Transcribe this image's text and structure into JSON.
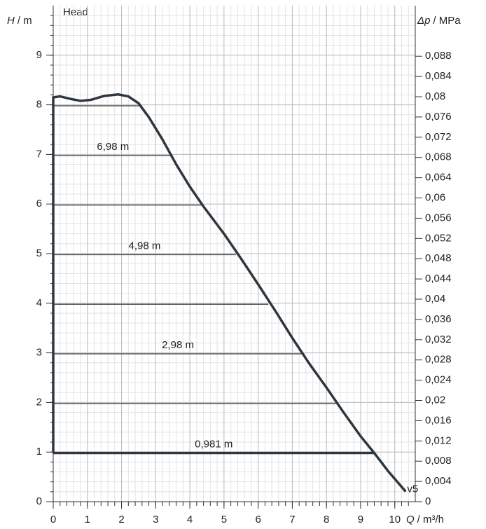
{
  "chart_data": {
    "type": "line",
    "title": "Head",
    "y_label_symbol": "H",
    "y_label_unit": "/ m",
    "y2_label_symbol": "Δp",
    "y2_label_unit": "/ MPa",
    "x_label_symbol": "Q",
    "x_label_unit": "/ m³/h",
    "xlim": [
      0,
      10.6
    ],
    "ylim": [
      0,
      10
    ],
    "y2lim": [
      0,
      0.098
    ],
    "xticks": [
      0,
      1,
      2,
      3,
      4,
      5,
      6,
      7,
      8,
      9,
      10
    ],
    "yticks": [
      0,
      1,
      2,
      3,
      4,
      5,
      6,
      7,
      8,
      9
    ],
    "y2ticks": [
      0,
      {
        "value": 0.004,
        "label": "0,004"
      },
      {
        "value": 0.008,
        "label": "0,008"
      },
      {
        "value": 0.012,
        "label": "0,012"
      },
      {
        "value": 0.016,
        "label": "0,016"
      },
      {
        "value": 0.02,
        "label": "0,02"
      },
      {
        "value": 0.024,
        "label": "0,024"
      },
      {
        "value": 0.028,
        "label": "0,028"
      },
      {
        "value": 0.032,
        "label": "0,032"
      },
      {
        "value": 0.036,
        "label": "0,036"
      },
      {
        "value": 0.04,
        "label": "0,04"
      },
      {
        "value": 0.044,
        "label": "0,044"
      },
      {
        "value": 0.048,
        "label": "0,048"
      },
      {
        "value": 0.052,
        "label": "0,052"
      },
      {
        "value": 0.056,
        "label": "0,056"
      },
      {
        "value": 0.06,
        "label": "0,06"
      },
      {
        "value": 0.064,
        "label": "0,064"
      },
      {
        "value": 0.068,
        "label": "0,068"
      },
      {
        "value": 0.072,
        "label": "0,072"
      },
      {
        "value": 0.076,
        "label": "0,076"
      },
      {
        "value": 0.08,
        "label": "0,08"
      },
      {
        "value": 0.084,
        "label": "0,084"
      },
      {
        "value": 0.088,
        "label": "0,088"
      }
    ],
    "grid": true,
    "minor_grid": {
      "x": 0.2,
      "y": 0.2
    },
    "series": [
      {
        "name": "v5",
        "color": "#2e3640",
        "x": [
          0,
          0.2,
          0.5,
          0.8,
          1.1,
          1.5,
          1.9,
          2.2,
          2.5,
          2.8,
          3.2,
          3.6,
          4,
          4.4,
          5,
          5.5,
          6,
          6.5,
          7,
          7.5,
          8,
          8.5,
          9,
          9.4,
          9.8,
          10.3
        ],
        "values": [
          8.15,
          8.17,
          8.12,
          8.08,
          8.1,
          8.18,
          8.21,
          8.17,
          8.03,
          7.75,
          7.3,
          6.8,
          6.35,
          5.95,
          5.4,
          4.9,
          4.38,
          3.85,
          3.3,
          2.78,
          2.3,
          1.8,
          1.32,
          0.98,
          0.62,
          0.22
        ]
      }
    ],
    "operating_lines": [
      {
        "h": 7.98,
        "q_end": 2.6
      },
      {
        "h": 6.98,
        "q_end": 3.5,
        "label": "6,98 m"
      },
      {
        "h": 5.98,
        "q_end": 4.4
      },
      {
        "h": 4.98,
        "q_end": 5.35,
        "label": "4,98 m"
      },
      {
        "h": 3.98,
        "q_end": 6.3
      },
      {
        "h": 2.98,
        "q_end": 7.3,
        "label": "2,98 m"
      },
      {
        "h": 1.98,
        "q_end": 8.3
      },
      {
        "h": 0.981,
        "q_end": 9.4,
        "label": "0,981 m"
      }
    ]
  }
}
